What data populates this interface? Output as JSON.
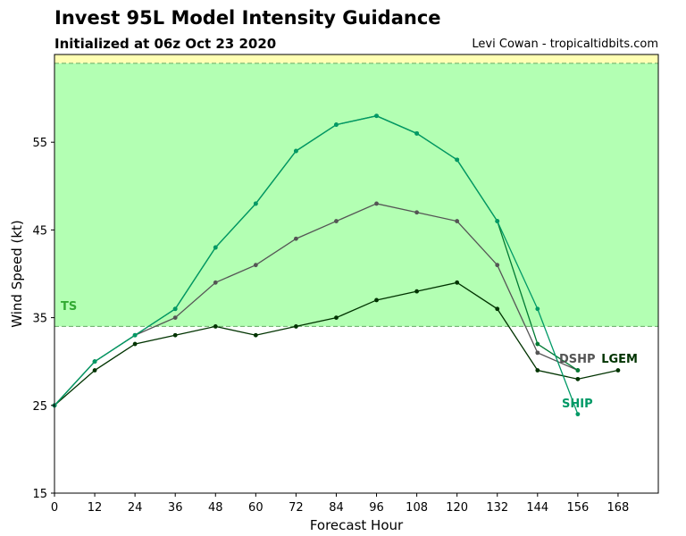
{
  "header": {
    "title": "Invest 95L Model Intensity Guidance",
    "subtitle": "Initialized at 06z Oct 23 2020",
    "credit": "Levi Cowan - tropicaltidbits.com"
  },
  "chart_data": {
    "type": "line",
    "title": "Invest 95L Model Intensity Guidance",
    "subtitle": "Initialized at 06z Oct 23 2020",
    "xlabel": "Forecast Hour",
    "ylabel": "Wind Speed (kt)",
    "xlim": [
      0,
      180
    ],
    "ylim": [
      15,
      65
    ],
    "x_ticks": [
      0,
      12,
      24,
      36,
      48,
      60,
      72,
      84,
      96,
      108,
      120,
      132,
      144,
      156,
      168
    ],
    "y_ticks": [
      15,
      25,
      35,
      45,
      55
    ],
    "grid": false,
    "bands": [
      {
        "label": "TS",
        "from": 34,
        "to": 64,
        "color": "#b3ffb3"
      },
      {
        "label": "",
        "from": 64,
        "to": 65,
        "color": "#ffffb3"
      }
    ],
    "threshold_lines": [
      34,
      64
    ],
    "series": [
      {
        "name": "LGEM",
        "color": "#003300",
        "x": [
          0,
          12,
          24,
          36,
          48,
          60,
          72,
          84,
          96,
          108,
          120,
          132,
          144,
          156,
          168
        ],
        "y": [
          25,
          29,
          32,
          33,
          34,
          33,
          34,
          35,
          37,
          38,
          39,
          36,
          29,
          28,
          29
        ]
      },
      {
        "name": "DSHP",
        "color": "#555555",
        "x": [
          0,
          12,
          24,
          36,
          48,
          60,
          72,
          84,
          96,
          108,
          120,
          132,
          144,
          156
        ],
        "y": [
          25,
          30,
          33,
          35,
          39,
          41,
          44,
          46,
          48,
          47,
          46,
          41,
          31,
          29
        ]
      },
      {
        "name": "",
        "color": "#007a33",
        "x": [
          0,
          12,
          24,
          36,
          48,
          60,
          72,
          84,
          96,
          108,
          120,
          132,
          144,
          156
        ],
        "y": [
          25,
          30,
          33,
          36,
          43,
          48,
          54,
          57,
          58,
          56,
          53,
          46,
          32,
          29
        ]
      },
      {
        "name": "SHIP",
        "color": "#009966",
        "x": [
          0,
          12,
          24,
          36,
          48,
          60,
          72,
          84,
          96,
          108,
          120,
          132,
          144,
          156
        ],
        "y": [
          25,
          30,
          33,
          36,
          43,
          48,
          54,
          57,
          58,
          56,
          53,
          46,
          36,
          24
        ]
      }
    ],
    "series_labels": [
      {
        "text": "TS",
        "color": "#33aa33"
      },
      {
        "text": "DSHP",
        "color": "#555555"
      },
      {
        "text": "LGEM",
        "color": "#003300"
      },
      {
        "text": "SHIP",
        "color": "#009966"
      }
    ]
  }
}
